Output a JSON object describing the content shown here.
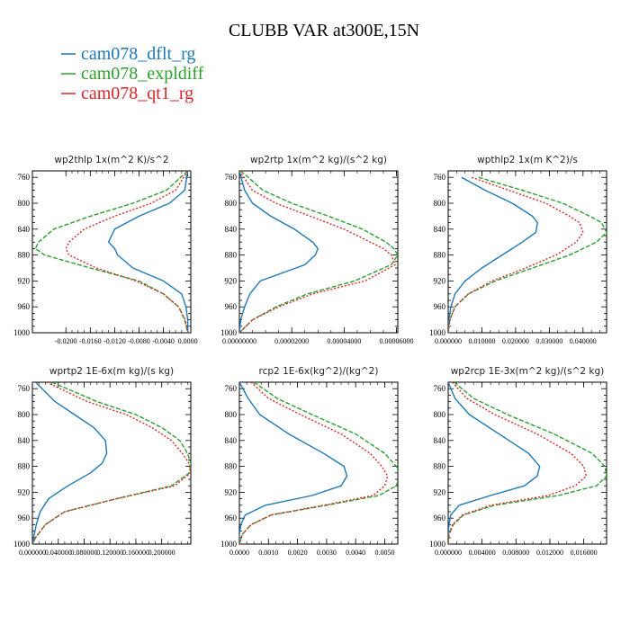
{
  "figure": {
    "title": "CLUBB VAR at300E,15N",
    "legend": [
      {
        "label": "cam078_dflt_rg",
        "color": "#1f77b4"
      },
      {
        "label": "cam078_expldiff",
        "color": "#2ca02c"
      },
      {
        "label": "cam078_qt1_rg",
        "color": "#d62728"
      }
    ]
  },
  "chart_data": [
    {
      "type": "line",
      "title": "wp2thlp   1x(m^2 K)/s^2",
      "xlim": [
        -0.0255,
        0.0005
      ],
      "ylim": [
        1000,
        750
      ],
      "yticks": [
        760,
        800,
        840,
        880,
        920,
        960,
        1000
      ],
      "xticks": [
        -0.02,
        -0.016,
        -0.012,
        -0.008,
        -0.004,
        0.0
      ],
      "xtick_labels": [
        "-0.0200",
        "-0.0160",
        "-0.0120",
        "-0.0080",
        "-0.0040",
        "0.0000"
      ],
      "y": [
        750,
        780,
        800,
        820,
        840,
        860,
        870,
        880,
        900,
        920,
        940,
        960,
        980,
        1000
      ],
      "series": [
        {
          "name": "cam078_dflt_rg",
          "values": [
            0.0,
            -0.0005,
            -0.003,
            -0.008,
            -0.012,
            -0.013,
            -0.012,
            -0.0115,
            -0.009,
            -0.004,
            -0.001,
            -0.0003,
            0.0,
            0.0
          ]
        },
        {
          "name": "cam078_expldiff",
          "values": [
            0.0,
            -0.0035,
            -0.009,
            -0.016,
            -0.022,
            -0.0245,
            -0.025,
            -0.0235,
            -0.016,
            -0.008,
            -0.004,
            -0.0015,
            -0.0005,
            0.0
          ]
        },
        {
          "name": "cam078_qt1_rg",
          "values": [
            0.0,
            -0.002,
            -0.006,
            -0.012,
            -0.017,
            -0.0195,
            -0.02,
            -0.0195,
            -0.015,
            -0.0085,
            -0.004,
            -0.0015,
            -0.0004,
            0.0
          ]
        }
      ]
    },
    {
      "type": "line",
      "title": "wp2rtp   1x(m^2 kg)/(s^2 kg)",
      "xlim": [
        0.0,
        6.05e-05
      ],
      "ylim": [
        1000,
        750
      ],
      "yticks": [
        760,
        800,
        840,
        880,
        920,
        960,
        1000
      ],
      "xticks": [
        0.0,
        2e-05,
        4e-05,
        6e-05
      ],
      "xtick_labels": [
        "0.00000000",
        "0.00002000",
        "0.00004000",
        "0.00006000"
      ],
      "y": [
        750,
        780,
        800,
        820,
        840,
        860,
        870,
        880,
        895,
        920,
        940,
        960,
        980,
        1000
      ],
      "series": [
        {
          "name": "cam078_dflt_rg",
          "values": [
            0.0,
            2e-06,
            5e-06,
            1.2e-05,
            2.1e-05,
            2.8e-05,
            3e-05,
            2.9e-05,
            2.5e-05,
            8e-06,
            4e-06,
            2e-06,
            5e-07,
            0.0
          ]
        },
        {
          "name": "cam078_expldiff",
          "values": [
            5e-07,
            9e-06,
            2e-05,
            3.4e-05,
            4.7e-05,
            5.6e-05,
            5.9e-05,
            6.05e-05,
            5.8e-05,
            4.4e-05,
            2.6e-05,
            1.4e-05,
            5e-06,
            0.0
          ]
        },
        {
          "name": "cam078_qt1_rg",
          "values": [
            0.0,
            5e-06,
            1.4e-05,
            2.7e-05,
            4e-05,
            5e-05,
            5.5e-05,
            5.8e-05,
            5.95e-05,
            4.8e-05,
            2.8e-05,
            1.5e-05,
            5e-06,
            0.0
          ]
        }
      ]
    },
    {
      "type": "line",
      "title": "wpthlp2   1x(m K^2)/s",
      "xlim": [
        0.0,
        0.047
      ],
      "ylim": [
        1000,
        750
      ],
      "yticks": [
        760,
        800,
        840,
        880,
        920,
        960,
        1000
      ],
      "xticks": [
        0.0,
        0.01,
        0.02,
        0.03,
        0.04
      ],
      "xtick_labels": [
        "0.000000",
        "0.010000",
        "0.020000",
        "0.030000",
        "0.040000"
      ],
      "y": [
        760,
        780,
        800,
        820,
        830,
        845,
        860,
        880,
        900,
        920,
        940,
        960,
        980,
        1000
      ],
      "series": [
        {
          "name": "cam078_dflt_rg",
          "values": [
            0.004,
            0.011,
            0.019,
            0.025,
            0.0265,
            0.026,
            0.022,
            0.016,
            0.01,
            0.005,
            0.002,
            0.0008,
            0.0002,
            0.0
          ]
        },
        {
          "name": "cam078_expldiff",
          "values": [
            0.009,
            0.022,
            0.034,
            0.042,
            0.0455,
            0.047,
            0.044,
            0.036,
            0.025,
            0.014,
            0.006,
            0.002,
            0.0005,
            0.0
          ]
        },
        {
          "name": "cam078_qt1_rg",
          "values": [
            0.007,
            0.018,
            0.029,
            0.036,
            0.039,
            0.04,
            0.038,
            0.032,
            0.023,
            0.013,
            0.006,
            0.002,
            0.0005,
            0.0
          ]
        }
      ]
    },
    {
      "type": "line",
      "title": "wprtp2   1E-6x(m kg)/(s kg)",
      "xlim": [
        0.0,
        0.245
      ],
      "ylim": [
        1000,
        750
      ],
      "yticks": [
        760,
        800,
        840,
        880,
        920,
        960,
        1000
      ],
      "xticks": [
        0.0,
        0.04,
        0.08,
        0.12,
        0.16,
        0.2
      ],
      "xtick_labels": [
        "0.000000",
        "0.040000",
        "0.080000",
        "0.120000",
        "0.160000",
        "0.200000"
      ],
      "y": [
        750,
        780,
        800,
        820,
        840,
        860,
        875,
        890,
        910,
        930,
        950,
        970,
        990,
        1000
      ],
      "series": [
        {
          "name": "cam078_dflt_rg",
          "values": [
            0.005,
            0.035,
            0.065,
            0.095,
            0.113,
            0.115,
            0.108,
            0.09,
            0.055,
            0.025,
            0.012,
            0.006,
            0.002,
            0.0
          ]
        },
        {
          "name": "cam078_expldiff",
          "values": [
            0.03,
            0.1,
            0.16,
            0.2,
            0.228,
            0.24,
            0.245,
            0.243,
            0.215,
            0.13,
            0.05,
            0.02,
            0.005,
            0.0
          ]
        },
        {
          "name": "cam078_qt1_rg",
          "values": [
            0.022,
            0.085,
            0.145,
            0.185,
            0.215,
            0.232,
            0.242,
            0.245,
            0.22,
            0.13,
            0.05,
            0.02,
            0.005,
            0.0
          ]
        }
      ]
    },
    {
      "type": "line",
      "title": "rcp2   1E-6x(kg^2)/(kg^2)",
      "xlim": [
        0.0,
        0.00545
      ],
      "ylim": [
        1000,
        750
      ],
      "yticks": [
        760,
        800,
        840,
        880,
        920,
        960,
        1000
      ],
      "xticks": [
        0.0,
        0.001,
        0.002,
        0.003,
        0.004,
        0.005
      ],
      "xtick_labels": [
        "0.0000",
        "0.0010",
        "0.0020",
        "0.0030",
        "0.0040",
        "0.0050"
      ],
      "y": [
        750,
        775,
        800,
        830,
        860,
        880,
        895,
        910,
        925,
        940,
        955,
        970,
        985,
        1000
      ],
      "series": [
        {
          "name": "cam078_dflt_rg",
          "values": [
            0.0,
            0.0003,
            0.0007,
            0.0017,
            0.0029,
            0.0036,
            0.0037,
            0.0035,
            0.0025,
            0.0009,
            0.0002,
            5e-05,
            0.0,
            0.0
          ]
        },
        {
          "name": "cam078_expldiff",
          "values": [
            0.0005,
            0.0013,
            0.0025,
            0.004,
            0.005,
            0.0054,
            0.0055,
            0.0054,
            0.0048,
            0.003,
            0.0011,
            0.0004,
            0.0001,
            0.0
          ]
        },
        {
          "name": "cam078_qt1_rg",
          "values": [
            0.0004,
            0.001,
            0.0021,
            0.0035,
            0.0045,
            0.0049,
            0.0051,
            0.005,
            0.0046,
            0.0029,
            0.0011,
            0.0004,
            0.0001,
            0.0
          ]
        }
      ]
    },
    {
      "type": "line",
      "title": "wp2rcp   1E-3x(m^2 kg)/(s^2 kg)",
      "xlim": [
        0.0,
        0.0187
      ],
      "ylim": [
        1000,
        750
      ],
      "yticks": [
        760,
        800,
        840,
        880,
        920,
        960,
        1000
      ],
      "xticks": [
        0.0,
        0.004,
        0.008,
        0.012,
        0.016
      ],
      "xtick_labels": [
        "0.000000",
        "0.004000",
        "0.008000",
        "0.012000",
        "0.016000"
      ],
      "y": [
        750,
        775,
        800,
        830,
        860,
        880,
        895,
        910,
        925,
        940,
        955,
        970,
        985,
        1000
      ],
      "series": [
        {
          "name": "cam078_dflt_rg",
          "values": [
            0.0,
            0.0008,
            0.0025,
            0.006,
            0.0095,
            0.0108,
            0.0105,
            0.009,
            0.005,
            0.0013,
            0.0003,
            0.0001,
            0.0,
            0.0
          ]
        },
        {
          "name": "cam078_expldiff",
          "values": [
            0.0007,
            0.003,
            0.007,
            0.0125,
            0.017,
            0.0185,
            0.0187,
            0.0175,
            0.013,
            0.0055,
            0.0018,
            0.0006,
            0.0001,
            0.0
          ]
        },
        {
          "name": "cam078_qt1_rg",
          "values": [
            0.0005,
            0.0022,
            0.0055,
            0.0105,
            0.0145,
            0.016,
            0.0163,
            0.015,
            0.0118,
            0.005,
            0.0017,
            0.0005,
            0.0001,
            0.0
          ]
        }
      ]
    }
  ]
}
